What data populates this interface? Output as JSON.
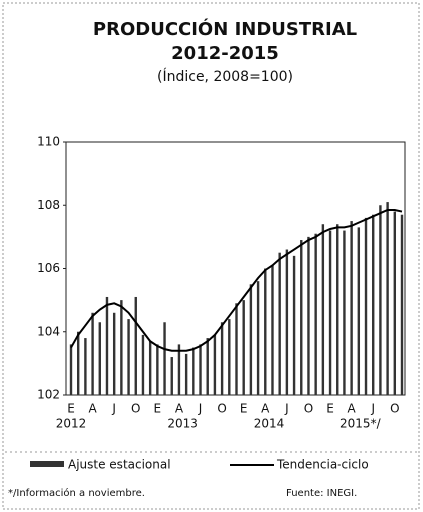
{
  "chart_data": {
    "type": "bar_line",
    "title": "PRODUCCIÓN INDUSTRIAL",
    "title2": "2012-2015",
    "subtitle": "(Índice, 2008=100)",
    "categories": [
      "E",
      null,
      null,
      "A",
      null,
      null,
      "J",
      null,
      null,
      "O",
      null,
      null,
      "E",
      null,
      null,
      "A",
      null,
      null,
      "J",
      null,
      null,
      "O",
      null,
      null,
      "E",
      null,
      null,
      "A",
      null,
      null,
      "J",
      null,
      null,
      "O",
      null,
      null,
      "E",
      null,
      null,
      "A",
      null,
      null,
      "J",
      null,
      null,
      "O",
      null
    ],
    "years": [
      "2012",
      "2013",
      "2014",
      "2015*/"
    ],
    "series": [
      {
        "name": "Ajuste estacional",
        "color": "#333333",
        "values": [
          103.6,
          104.0,
          103.8,
          104.6,
          104.3,
          105.1,
          104.6,
          105.0,
          104.4,
          105.1,
          103.9,
          103.7,
          103.6,
          104.3,
          103.2,
          103.6,
          103.3,
          103.5,
          103.6,
          103.8,
          103.9,
          104.3,
          104.4,
          104.9,
          105.0,
          105.5,
          105.6,
          106.0,
          106.1,
          106.5,
          106.6,
          106.4,
          106.9,
          107.0,
          107.1,
          107.4,
          107.2,
          107.4,
          107.2,
          107.5,
          107.3,
          107.6,
          107.7,
          108.0,
          108.1,
          107.8,
          107.7
        ]
      },
      {
        "name": "Tendencia-ciclo",
        "color": "#000000",
        "values": [
          103.5,
          103.9,
          104.2,
          104.5,
          104.7,
          104.85,
          104.9,
          104.8,
          104.6,
          104.3,
          104.0,
          103.7,
          103.55,
          103.45,
          103.4,
          103.4,
          103.4,
          103.45,
          103.55,
          103.7,
          103.9,
          104.2,
          104.5,
          104.8,
          105.1,
          105.4,
          105.7,
          105.95,
          106.1,
          106.3,
          106.45,
          106.6,
          106.75,
          106.9,
          107.0,
          107.15,
          107.25,
          107.3,
          107.3,
          107.35,
          107.45,
          107.55,
          107.65,
          107.75,
          107.85,
          107.85,
          107.8
        ]
      }
    ],
    "ylim": [
      102,
      110
    ],
    "yticks": [
      102,
      104,
      106,
      108,
      110
    ],
    "note": "*/Información a noviembre.",
    "source": "Fuente: INEGI."
  }
}
